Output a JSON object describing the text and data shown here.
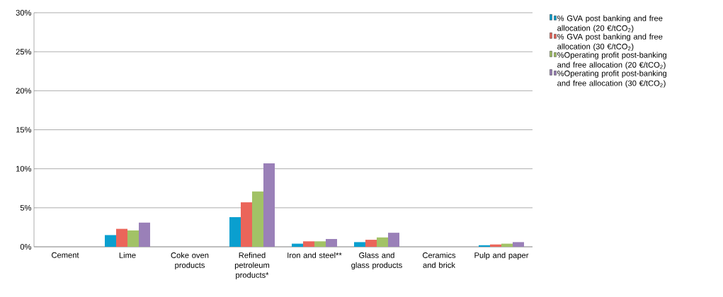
{
  "chart_data": {
    "type": "bar",
    "categories": [
      "Cement",
      "Lime",
      "Coke oven products",
      "Refined petroleum products*",
      "Iron and steel**",
      "Glass and glass products",
      "Ceramics and brick",
      "Pulp and paper"
    ],
    "series": [
      {
        "name": "% GVA post banking and free allocation (20 €/tCO$_{2}$)",
        "color": "#0a9fcf",
        "values": [
          0,
          1.5,
          0,
          3.8,
          0.4,
          0.6,
          0,
          0.2
        ]
      },
      {
        "name": "% GVA post banking and free allocation (30 €/tCO$_{2}$)",
        "color": "#eb655a",
        "values": [
          0,
          2.3,
          0,
          5.7,
          0.7,
          0.9,
          0,
          0.3
        ]
      },
      {
        "name": "%Operating profit post-banking and free allocation (20 €/tCO$_{2}$)",
        "color": "#a2c266",
        "values": [
          0,
          2.1,
          0,
          7.1,
          0.7,
          1.2,
          0,
          0.4
        ]
      },
      {
        "name": "%Operating profit post-banking and free allocation (30 €/tCO$_{2}$)",
        "color": "#9a80b8",
        "values": [
          0,
          3.1,
          0,
          10.7,
          1.0,
          1.8,
          0,
          0.6
        ]
      }
    ],
    "ylim": [
      0,
      30
    ],
    "yticks": [
      {
        "value": 0,
        "label": "0%"
      },
      {
        "value": 5,
        "label": "5%"
      },
      {
        "value": 10,
        "label": "10%"
      },
      {
        "value": 15,
        "label": "15%"
      },
      {
        "value": 20,
        "label": "20%"
      },
      {
        "value": 25,
        "label": "25%"
      },
      {
        "value": 30,
        "label": "30%"
      }
    ],
    "grid": "y",
    "legend": "right"
  }
}
